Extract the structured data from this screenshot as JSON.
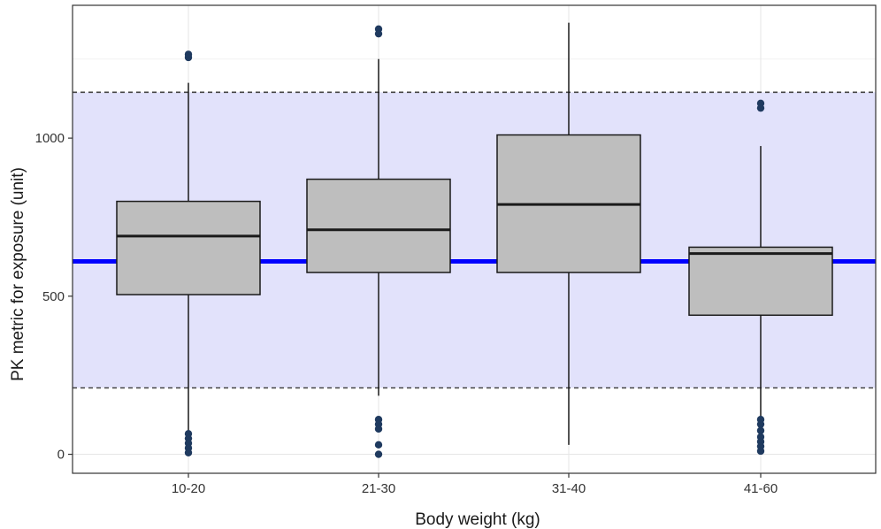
{
  "chart_data": {
    "type": "box",
    "xlabel": "Body weight (kg)",
    "ylabel": "PK metric for exposure (unit)",
    "categories": [
      "10-20",
      "21-30",
      "31-40",
      "41-60"
    ],
    "ylim": [
      -60,
      1420
    ],
    "yticks": [
      0,
      500,
      1000
    ],
    "grid": true,
    "reference": {
      "line": 610,
      "band": [
        210,
        1145
      ],
      "line_color": "#0000ff",
      "band_color": "#e2e2fb"
    },
    "box_fill": "#bebebe",
    "outlier_color": "#1f3a5f",
    "boxes": [
      {
        "category": "10-20",
        "whisker_low": 10,
        "q1": 505,
        "median": 690,
        "q3": 800,
        "whisker_high": 1175,
        "outliers": [
          1255,
          1265,
          65,
          50,
          35,
          20,
          5
        ]
      },
      {
        "category": "21-30",
        "whisker_low": 185,
        "q1": 575,
        "median": 710,
        "q3": 870,
        "whisker_high": 1250,
        "outliers": [
          1345,
          1330,
          110,
          95,
          80,
          30,
          0
        ]
      },
      {
        "category": "31-40",
        "whisker_low": 30,
        "q1": 575,
        "median": 790,
        "q3": 1010,
        "whisker_high": 1365,
        "outliers": []
      },
      {
        "category": "41-60",
        "whisker_low": 10,
        "q1": 440,
        "median": 635,
        "q3": 655,
        "whisker_high": 975,
        "outliers": [
          1110,
          1095,
          110,
          95,
          75,
          55,
          40,
          25,
          10
        ]
      }
    ]
  }
}
